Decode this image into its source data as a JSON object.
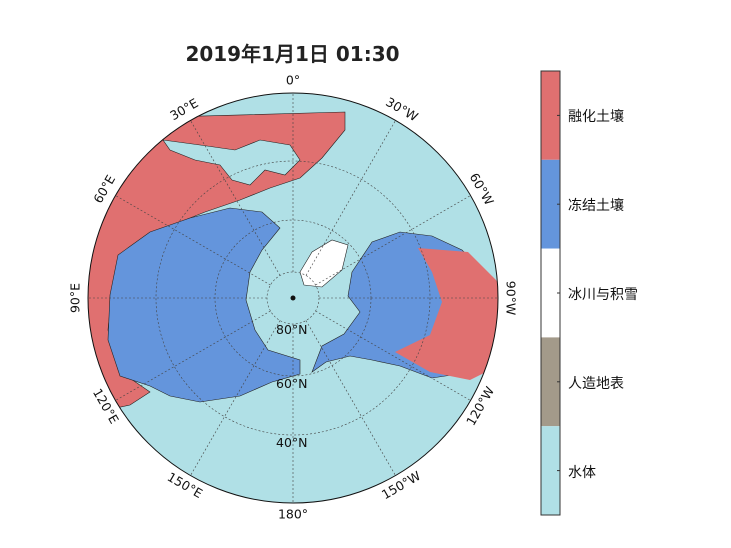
{
  "title": "2019年1月1日 01:30",
  "map": {
    "projection": "north polar stereographic",
    "meridian_labels": [
      "0°",
      "30°W",
      "60°W",
      "90°W",
      "120°W",
      "150°W",
      "180°",
      "150°E",
      "120°E",
      "90°E",
      "60°E",
      "30°E"
    ],
    "parallel_labels": [
      "80°N",
      "60°N",
      "40°N"
    ]
  },
  "legend": {
    "classes": [
      {
        "label": "融化土壤",
        "color": "#e07070"
      },
      {
        "label": "冻结土壤",
        "color": "#6495dc"
      },
      {
        "label": "冰川与积雪",
        "color": "#ffffff"
      },
      {
        "label": "人造地表",
        "color": "#a39a8a"
      },
      {
        "label": "水体",
        "color": "#b0e0e6"
      }
    ]
  }
}
